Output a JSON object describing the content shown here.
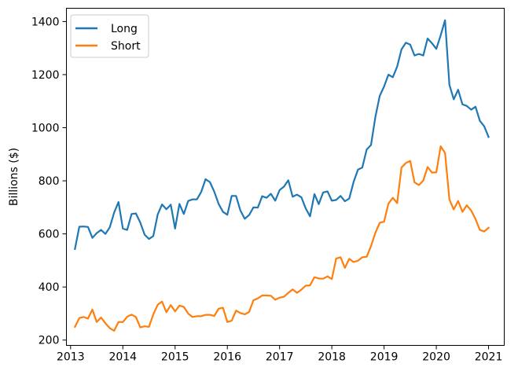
{
  "chart_data": {
    "type": "line",
    "title": "",
    "xlabel": "",
    "ylabel": "Billions ($)",
    "xlim": [
      2012.92,
      2021.3
    ],
    "ylim": [
      180,
      1450
    ],
    "x_ticks": [
      2013,
      2014,
      2015,
      2016,
      2017,
      2018,
      2019,
      2020,
      2021
    ],
    "y_ticks": [
      200,
      400,
      600,
      800,
      1000,
      1200,
      1400
    ],
    "grid": false,
    "legend": "top-left",
    "series": [
      {
        "name": "Long",
        "color": "#1f77b4",
        "x": [
          2013.083,
          2013.167,
          2013.25,
          2013.333,
          2013.417,
          2013.5,
          2013.583,
          2013.667,
          2013.75,
          2013.833,
          2013.917,
          2014.0,
          2014.083,
          2014.167,
          2014.25,
          2014.333,
          2014.417,
          2014.5,
          2014.583,
          2014.667,
          2014.75,
          2014.833,
          2014.917,
          2015.0,
          2015.083,
          2015.167,
          2015.25,
          2015.333,
          2015.417,
          2015.5,
          2015.583,
          2015.667,
          2015.75,
          2015.833,
          2015.917,
          2016.0,
          2016.083,
          2016.167,
          2016.25,
          2016.333,
          2016.417,
          2016.5,
          2016.583,
          2016.667,
          2016.75,
          2016.833,
          2016.917,
          2017.0,
          2017.083,
          2017.167,
          2017.25,
          2017.333,
          2017.417,
          2017.5,
          2017.583,
          2017.667,
          2017.75,
          2017.833,
          2017.917,
          2018.0,
          2018.083,
          2018.167,
          2018.25,
          2018.333,
          2018.417,
          2018.5,
          2018.583,
          2018.667,
          2018.75,
          2018.833,
          2018.917,
          2019.0,
          2019.083,
          2019.167,
          2019.25,
          2019.333,
          2019.417,
          2019.5,
          2019.583,
          2019.667,
          2019.75,
          2019.833,
          2019.917,
          2020.0,
          2020.083,
          2020.167,
          2020.25,
          2020.333,
          2020.417,
          2020.5,
          2020.583,
          2020.667,
          2020.75,
          2020.833,
          2020.917,
          2021.0
        ],
        "values": [
          543,
          627,
          628,
          626,
          585,
          603,
          615,
          600,
          625,
          680,
          720,
          620,
          615,
          675,
          677,
          643,
          597,
          581,
          592,
          673,
          711,
          693,
          710,
          620,
          713,
          675,
          724,
          730,
          730,
          758,
          806,
          795,
          759,
          713,
          683,
          672,
          743,
          743,
          688,
          657,
          671,
          700,
          699,
          742,
          736,
          751,
          725,
          765,
          778,
          802,
          740,
          748,
          738,
          696,
          666,
          750,
          712,
          756,
          760,
          725,
          728,
          743,
          723,
          733,
          796,
          842,
          850,
          918,
          935,
          1040,
          1120,
          1155,
          1200,
          1190,
          1230,
          1295,
          1320,
          1313,
          1272,
          1278,
          1272,
          1336,
          1318,
          1297,
          1348,
          1405,
          1162,
          1107,
          1143,
          1088,
          1082,
          1068,
          1079,
          1026,
          1005,
          965
        ]
      },
      {
        "name": "Short",
        "color": "#ff7f0e",
        "x": [
          2013.083,
          2013.167,
          2013.25,
          2013.333,
          2013.417,
          2013.5,
          2013.583,
          2013.667,
          2013.75,
          2013.833,
          2013.917,
          2014.0,
          2014.083,
          2014.167,
          2014.25,
          2014.333,
          2014.417,
          2014.5,
          2014.583,
          2014.667,
          2014.75,
          2014.833,
          2014.917,
          2015.0,
          2015.083,
          2015.167,
          2015.25,
          2015.333,
          2015.417,
          2015.5,
          2015.583,
          2015.667,
          2015.75,
          2015.833,
          2015.917,
          2016.0,
          2016.083,
          2016.167,
          2016.25,
          2016.333,
          2016.417,
          2016.5,
          2016.583,
          2016.667,
          2016.75,
          2016.833,
          2016.917,
          2017.0,
          2017.083,
          2017.167,
          2017.25,
          2017.333,
          2017.417,
          2017.5,
          2017.583,
          2017.667,
          2017.75,
          2017.833,
          2017.917,
          2018.0,
          2018.083,
          2018.167,
          2018.25,
          2018.333,
          2018.417,
          2018.5,
          2018.583,
          2018.667,
          2018.75,
          2018.833,
          2018.917,
          2019.0,
          2019.083,
          2019.167,
          2019.25,
          2019.333,
          2019.417,
          2019.5,
          2019.583,
          2019.667,
          2019.75,
          2019.833,
          2019.917,
          2020.0,
          2020.083,
          2020.167,
          2020.25,
          2020.333,
          2020.417,
          2020.5,
          2020.583,
          2020.667,
          2020.75,
          2020.833,
          2020.917,
          2021.0
        ],
        "values": [
          250,
          283,
          287,
          281,
          315,
          268,
          285,
          263,
          245,
          235,
          268,
          268,
          288,
          296,
          287,
          248,
          252,
          250,
          297,
          333,
          345,
          305,
          332,
          308,
          330,
          325,
          300,
          287,
          290,
          290,
          295,
          295,
          291,
          318,
          322,
          268,
          273,
          311,
          302,
          297,
          306,
          350,
          357,
          368,
          368,
          367,
          352,
          360,
          363,
          378,
          391,
          378,
          390,
          405,
          406,
          437,
          432,
          431,
          440,
          430,
          507,
          512,
          472,
          506,
          494,
          499,
          512,
          514,
          554,
          604,
          642,
          646,
          714,
          736,
          716,
          850,
          867,
          875,
          794,
          784,
          801,
          852,
          831,
          832,
          930,
          905,
          730,
          692,
          724,
          683,
          708,
          688,
          656,
          615,
          609,
          623
        ]
      }
    ]
  }
}
